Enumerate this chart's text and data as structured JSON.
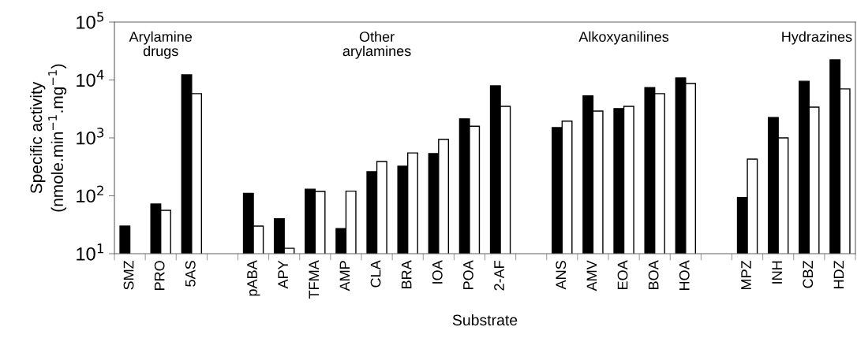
{
  "chart_data": {
    "type": "bar",
    "xlabel": "Substrate",
    "ylabel": "Specific activity\n(nmole.min$^{−1}$.mg$^{−1}$)",
    "categories": [
      "SMZ",
      "PRO",
      "5AS",
      null,
      "pABA",
      "APY",
      "TFMA",
      "AMP",
      "CLA",
      "BRA",
      "IOA",
      "POA",
      "2-AF",
      null,
      "ANS",
      "AMV",
      "EOA",
      "BOA",
      "HOA",
      null,
      "MPZ",
      "INH",
      "CBZ",
      "HDZ"
    ],
    "series": [
      {
        "color": "#000000",
        "values": [
          30,
          72,
          12250,
          null,
          110,
          40,
          130,
          27,
          260,
          324,
          535,
          2130,
          7900,
          null,
          1500,
          5300,
          3200,
          7400,
          10800,
          null,
          93,
          2250,
          9500,
          22300
        ]
      },
      {
        "color": "#ffffff",
        "values": [
          null,
          56,
          5800,
          null,
          30,
          12.4,
          119,
          120,
          390,
          550,
          940,
          1590,
          3500,
          null,
          1950,
          2900,
          3500,
          5800,
          8700,
          null,
          430,
          1000,
          3400,
          7000
        ]
      }
    ],
    "log": true,
    "ylim": [
      10,
      100000
    ],
    "yticks": [
      {
        "value": 10,
        "label": "10$^{1}$"
      },
      {
        "value": 100,
        "label": "10$^{2}$"
      },
      {
        "value": 1000,
        "label": "10$^{3}$"
      },
      {
        "value": 10000,
        "label": "10$^{4}$"
      },
      {
        "value": 100000,
        "label": "10$^{5}$"
      }
    ],
    "grid": false,
    "legend": false,
    "annotations": [
      "Arylamine\ndrugs",
      "Other\narylamines",
      "Alkoxyanilines",
      "Hydrazines"
    ]
  }
}
